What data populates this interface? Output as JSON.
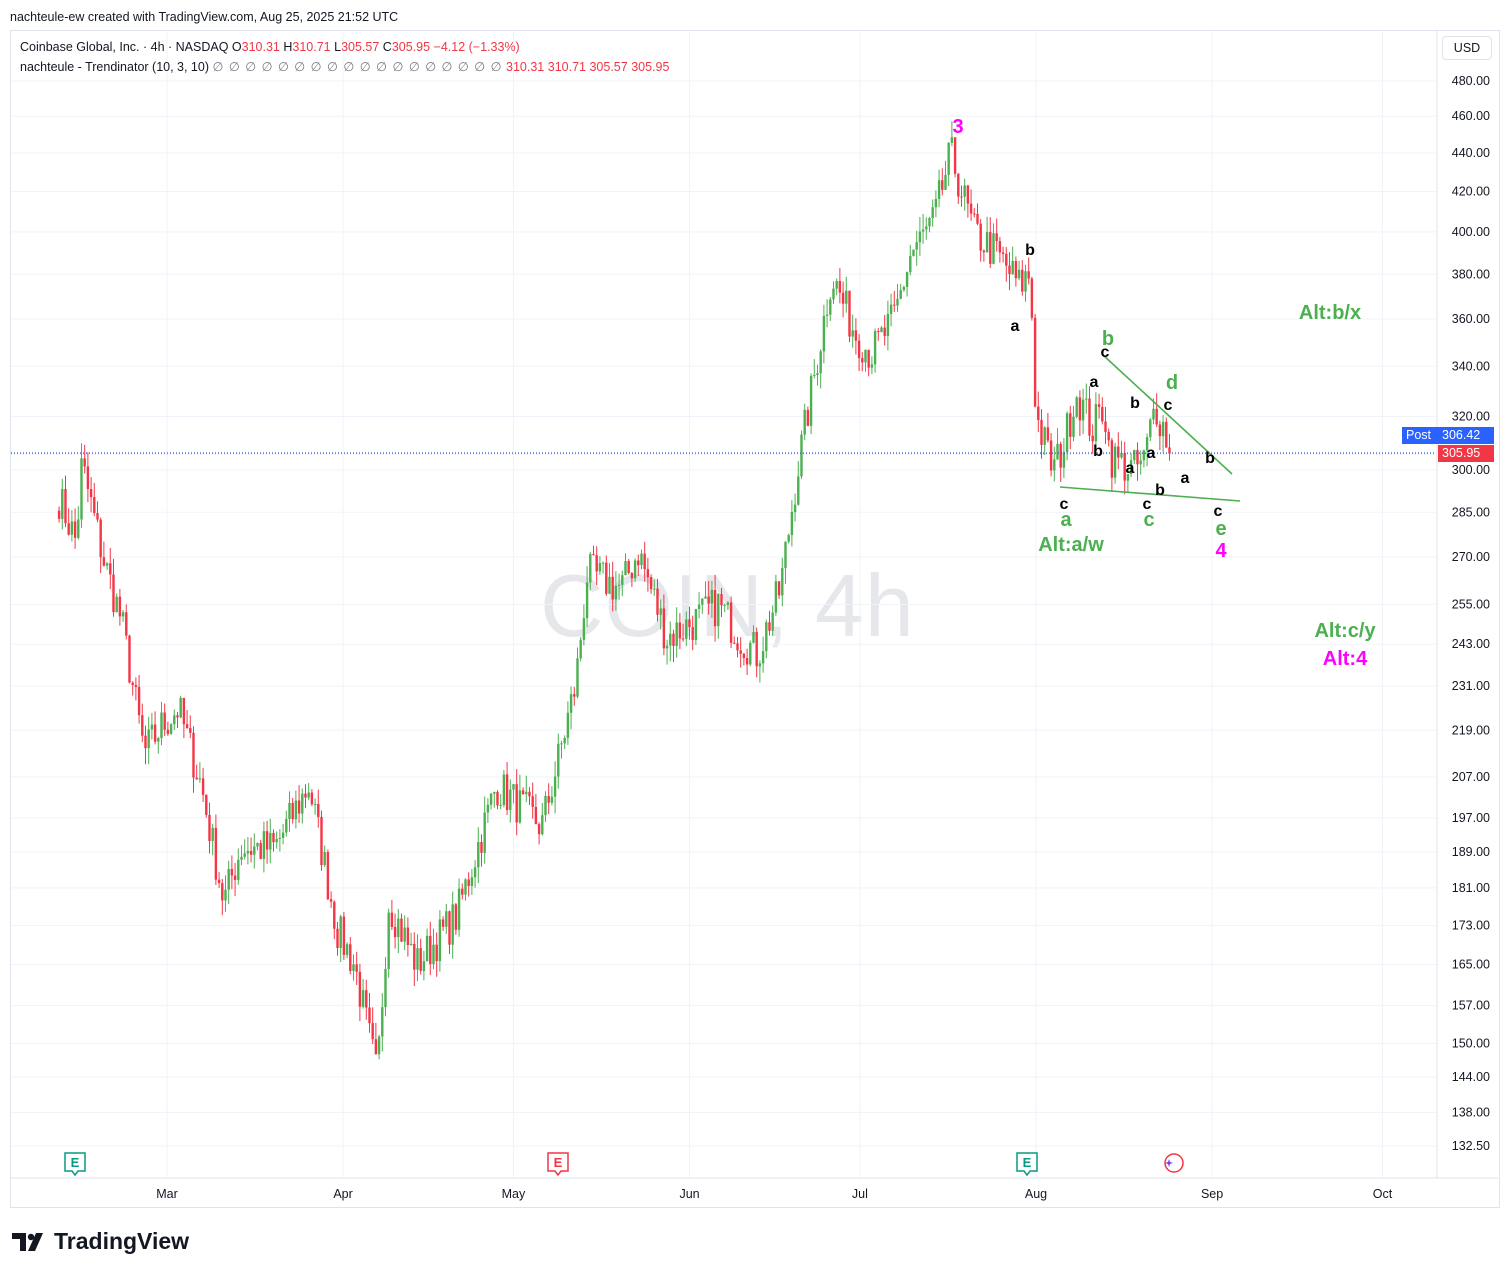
{
  "header": {
    "credit": "nachteule-ew created with TradingView.com, Aug 25, 2025 21:52 UTC"
  },
  "legend": {
    "symbol": "Coinbase Global, Inc. · 4h · NASDAQ",
    "o_label": "O",
    "o_value": "310.31",
    "h_label": "H",
    "h_value": "310.71",
    "l_label": "L",
    "l_value": "305.57",
    "c_label": "C",
    "c_value": "305.95",
    "change": "−4.12 (−1.33%)",
    "indicator": "nachteule - Trendinator (10, 3, 10)",
    "indicator_circles": "∅ ∅ ∅ ∅ ∅ ∅ ∅ ∅ ∅ ∅ ∅ ∅ ∅ ∅ ∅ ∅ ∅ ∅",
    "ind_v1": "310.31",
    "ind_v2": "310.71",
    "ind_v3": "305.57",
    "ind_v4": "305.95"
  },
  "currency_button": "USD",
  "watermark": "COIN, 4h",
  "price_tags": {
    "post_label": "Post",
    "post_price": "306.42",
    "last_price": "305.95"
  },
  "brand": "TradingView",
  "colors": {
    "up": "#4caf50",
    "down": "#f23645",
    "magenta": "#ff00ff",
    "wave_green": "#4caf50",
    "post_blue": "#2962ff"
  },
  "chart_data": {
    "type": "candlestick",
    "y_scale": "log",
    "y_ticks": [
      480,
      460,
      440,
      420,
      400,
      380,
      360,
      340,
      320,
      300,
      285,
      270,
      255,
      243,
      231,
      219,
      207,
      197,
      189,
      181,
      173,
      165,
      157,
      150,
      144,
      138,
      132.5
    ],
    "y_tick_labels": [
      "480.00",
      "460.00",
      "440.00",
      "420.00",
      "400.00",
      "380.00",
      "360.00",
      "340.00",
      "320.00",
      "300.00",
      "285.00",
      "270.00",
      "255.00",
      "243.00",
      "231.00",
      "219.00",
      "207.00",
      "197.00",
      "189.00",
      "181.00",
      "173.00",
      "165.00",
      "157.00",
      "150.00",
      "144.00",
      "138.00",
      "132.50"
    ],
    "x_labels": [
      "Mar",
      "Apr",
      "May",
      "Jun",
      "Jul",
      "Aug",
      "Sep",
      "Oct"
    ],
    "earnings_markers": [
      "E",
      "E",
      "E"
    ],
    "ohlc_points": [
      [
        "2025-02-10",
        290
      ],
      [
        "2025-02-13",
        275
      ],
      [
        "2025-02-14",
        302
      ],
      [
        "2025-02-18",
        268
      ],
      [
        "2025-02-21",
        250
      ],
      [
        "2025-02-25",
        213
      ],
      [
        "2025-02-28",
        220
      ],
      [
        "2025-03-03",
        225
      ],
      [
        "2025-03-07",
        205
      ],
      [
        "2025-03-11",
        178
      ],
      [
        "2025-03-14",
        190
      ],
      [
        "2025-03-20",
        190
      ],
      [
        "2025-03-26",
        205
      ],
      [
        "2025-03-31",
        172
      ],
      [
        "2025-04-03",
        165
      ],
      [
        "2025-04-07",
        144
      ],
      [
        "2025-04-09",
        178
      ],
      [
        "2025-04-14",
        165
      ],
      [
        "2025-04-21",
        175
      ],
      [
        "2025-04-28",
        205
      ],
      [
        "2025-05-02",
        200
      ],
      [
        "2025-05-06",
        195
      ],
      [
        "2025-05-09",
        212
      ],
      [
        "2025-05-12",
        232
      ],
      [
        "2025-05-14",
        265
      ],
      [
        "2025-05-20",
        260
      ],
      [
        "2025-05-23",
        272
      ],
      [
        "2025-05-28",
        245
      ],
      [
        "2025-06-02",
        250
      ],
      [
        "2025-06-06",
        255
      ],
      [
        "2025-06-10",
        245
      ],
      [
        "2025-06-13",
        240
      ],
      [
        "2025-06-17",
        260
      ],
      [
        "2025-06-20",
        300
      ],
      [
        "2025-06-24",
        350
      ],
      [
        "2025-06-26",
        380
      ],
      [
        "2025-06-30",
        355
      ],
      [
        "2025-07-03",
        345
      ],
      [
        "2025-07-07",
        360
      ],
      [
        "2025-07-10",
        390
      ],
      [
        "2025-07-14",
        405
      ],
      [
        "2025-07-17",
        440
      ],
      [
        "2025-07-21",
        400
      ],
      [
        "2025-07-25",
        390
      ],
      [
        "2025-07-29",
        375
      ],
      [
        "2025-07-31",
        380
      ],
      [
        "2025-08-01",
        320
      ],
      [
        "2025-08-04",
        300
      ],
      [
        "2025-08-06",
        310
      ],
      [
        "2025-08-08",
        330
      ],
      [
        "2025-08-11",
        315
      ],
      [
        "2025-08-13",
        325
      ],
      [
        "2025-08-14",
        305
      ],
      [
        "2025-08-18",
        300
      ],
      [
        "2025-08-20",
        303
      ],
      [
        "2025-08-22",
        325
      ],
      [
        "2025-08-25",
        305.95
      ]
    ],
    "wave_labels": [
      {
        "text": "3",
        "color": "magenta"
      },
      {
        "text": "b",
        "color": "black"
      },
      {
        "text": "a",
        "color": "black"
      },
      {
        "text": "Alt:b/x",
        "color": "green"
      },
      {
        "text": "b",
        "color": "green"
      },
      {
        "text": "c",
        "color": "black"
      },
      {
        "text": "a",
        "color": "black"
      },
      {
        "text": "d",
        "color": "green"
      },
      {
        "text": "b",
        "color": "black"
      },
      {
        "text": "c",
        "color": "black"
      },
      {
        "text": "b",
        "color": "black"
      },
      {
        "text": "a",
        "color": "black"
      },
      {
        "text": "a",
        "color": "black"
      },
      {
        "text": "b",
        "color": "black"
      },
      {
        "text": "a",
        "color": "black"
      },
      {
        "text": "b",
        "color": "black"
      },
      {
        "text": "c",
        "color": "black"
      },
      {
        "text": "a",
        "color": "green"
      },
      {
        "text": "Alt:a/w",
        "color": "green"
      },
      {
        "text": "c",
        "color": "black"
      },
      {
        "text": "c",
        "color": "green"
      },
      {
        "text": "c",
        "color": "black"
      },
      {
        "text": "e",
        "color": "green"
      },
      {
        "text": "4",
        "color": "magenta"
      },
      {
        "text": "Alt:c/y",
        "color": "green"
      },
      {
        "text": "Alt:4",
        "color": "magenta"
      }
    ]
  }
}
